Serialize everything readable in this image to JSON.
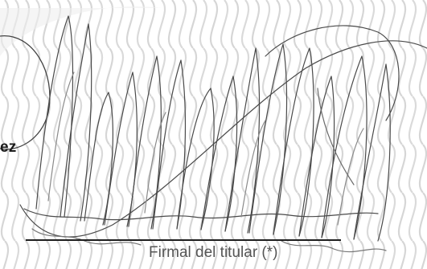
{
  "document": {
    "holder_name_fragment": "ez",
    "signature_caption": "Firmal del titular (*)"
  },
  "colors": {
    "background": "#ffffff",
    "pattern": "#d9d9d9",
    "ink": "#3a3a3a",
    "caption": "#555555"
  }
}
